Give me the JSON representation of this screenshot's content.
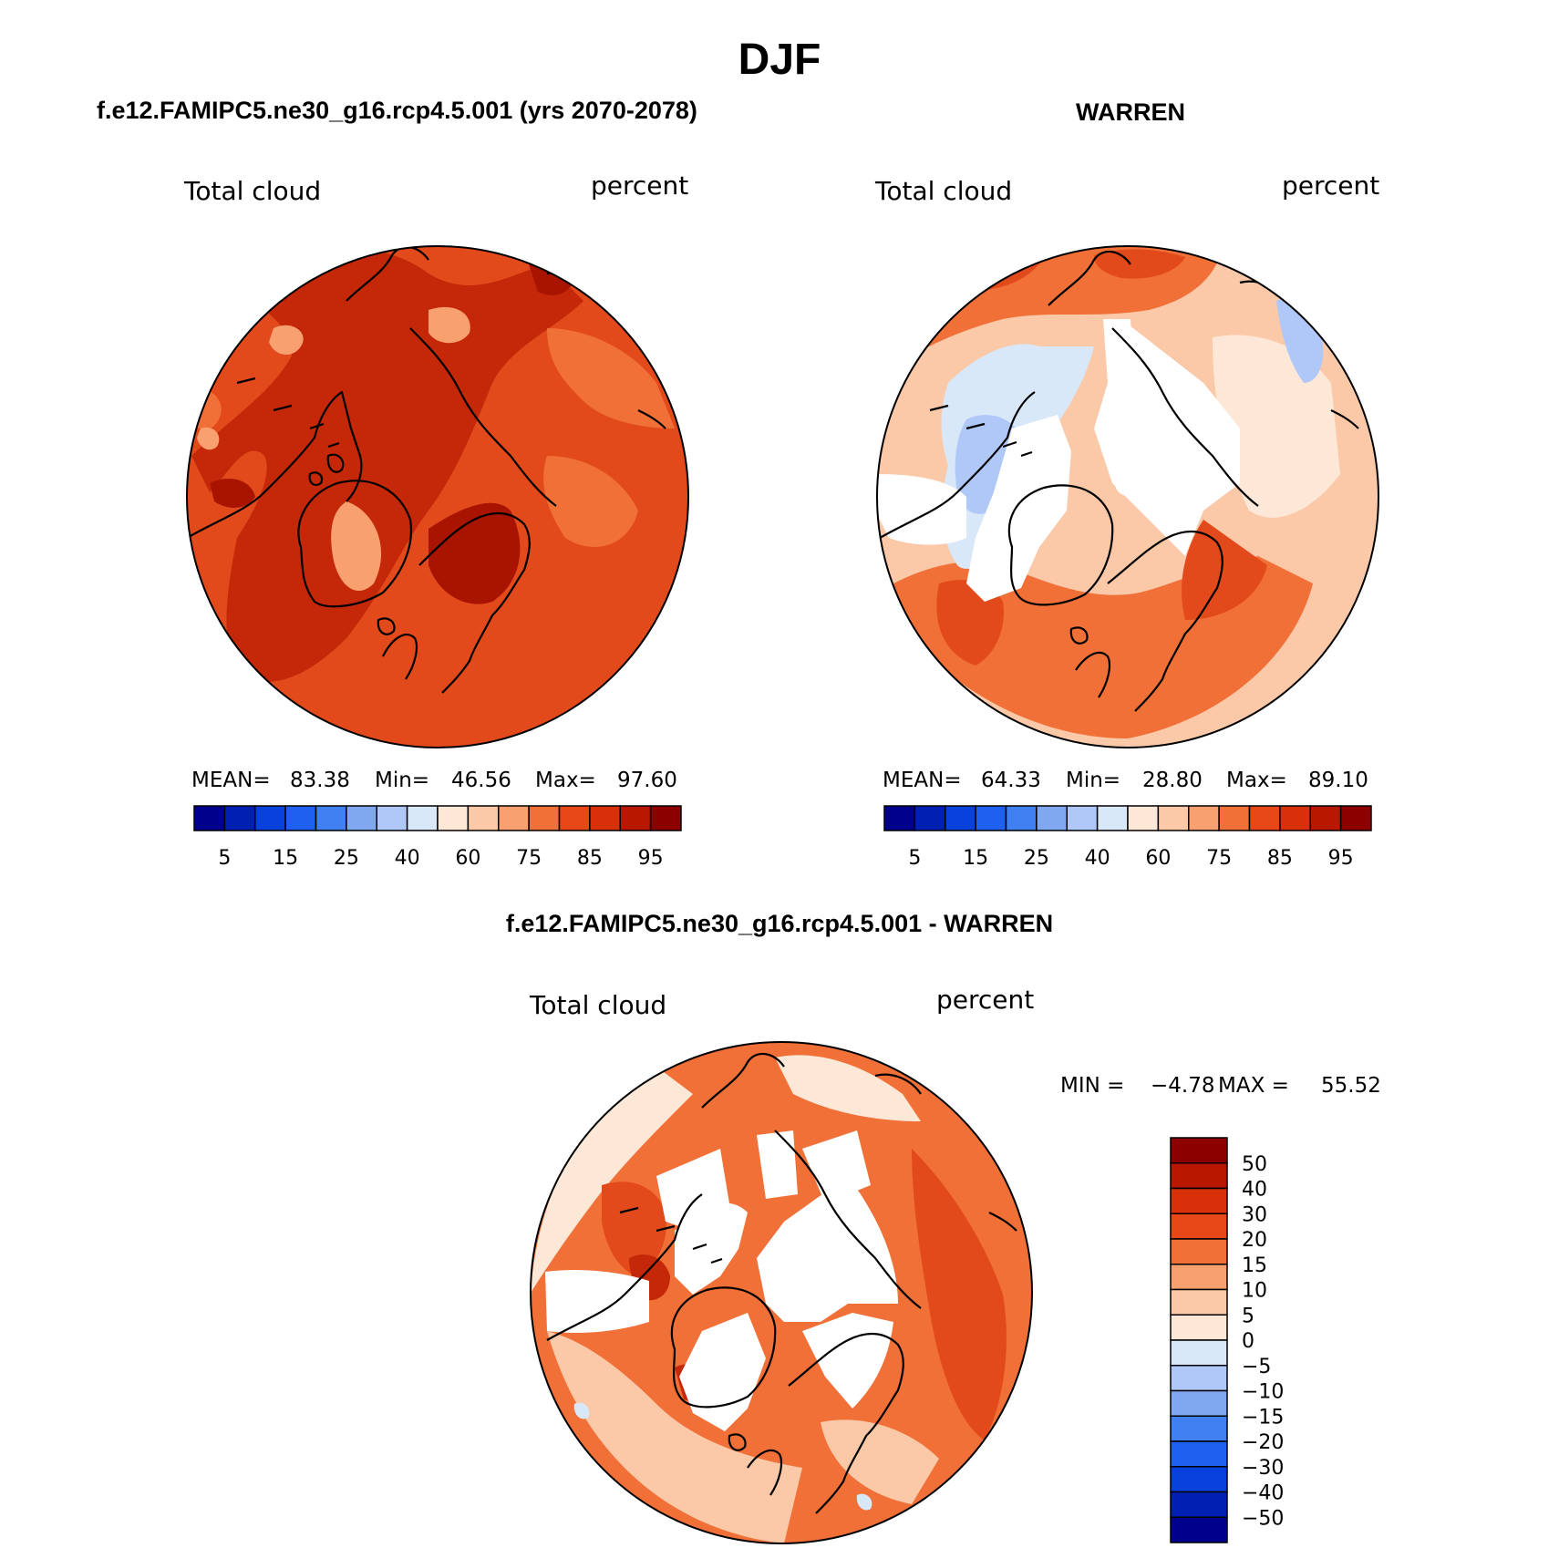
{
  "title": "DJF",
  "panels": [
    {
      "id": "model",
      "header": "f.e12.FAMIPC5.ne30_g16.rcp4.5.001 (yrs 2070-2078)",
      "variable": "Total cloud",
      "units": "percent",
      "stats": {
        "mean_label": "MEAN=",
        "mean": "83.38",
        "min_label": "Min=",
        "min": "46.56",
        "max_label": "Max=",
        "max": "97.60"
      }
    },
    {
      "id": "obs",
      "header": "WARREN",
      "variable": "Total cloud",
      "units": "percent",
      "stats": {
        "mean_label": "MEAN=",
        "mean": "64.33",
        "min_label": "Min=",
        "min": "28.80",
        "max_label": "Max=",
        "max": "89.10"
      }
    },
    {
      "id": "diff",
      "header": "f.e12.FAMIPC5.ne30_g16.rcp4.5.001 - WARREN",
      "variable": "Total cloud",
      "units": "percent",
      "stats": {
        "min_label": "MIN =",
        "min": "−4.78",
        "max_label": "MAX =",
        "max": "55.52"
      }
    }
  ],
  "horizontal_colorbar": {
    "colors": [
      "#00008c",
      "#0020b4",
      "#0841dc",
      "#2060f0",
      "#4080f0",
      "#80a8f0",
      "#b0c8f8",
      "#d8e8f8",
      "#fde8d8",
      "#fbc8a8",
      "#f8a070",
      "#f07038",
      "#e84818",
      "#d83008",
      "#b81800",
      "#8c0000"
    ],
    "tick_labels": [
      "5",
      "15",
      "25",
      "40",
      "60",
      "75",
      "85",
      "95"
    ]
  },
  "vertical_colorbar": {
    "colors_top_to_bottom": [
      "#8c0000",
      "#b81800",
      "#d83008",
      "#e84818",
      "#f07038",
      "#f8a070",
      "#fbc8a8",
      "#fde8d8",
      "#d8e8f8",
      "#b0c8f8",
      "#80a8f0",
      "#4080f0",
      "#2060f0",
      "#0841dc",
      "#0020b4",
      "#00008c"
    ],
    "tick_labels": [
      "50",
      "40",
      "30",
      "20",
      "15",
      "10",
      "5",
      "0",
      "−5",
      "−10",
      "−15",
      "−20",
      "−30",
      "−40",
      "−50"
    ]
  },
  "maps": {
    "projection": "North polar stereographic",
    "model_colors": {
      "base": "#e24a1c",
      "dark": "#c42808",
      "darker": "#a81400",
      "light": "#f07038",
      "pale": "#f8a070"
    },
    "obs_colors": {
      "base": "#fbc8a8",
      "orange": "#f07038",
      "red": "#e24a1c",
      "blue": "#b0c8f8",
      "lightblue": "#d8e8f8",
      "pale": "#fde8d8"
    },
    "diff_colors": {
      "base": "#f07038",
      "red": "#e24a1c",
      "pale": "#fbc8a8",
      "paler": "#fde8d8",
      "dark": "#c42808",
      "blue": "#d8e8f8"
    }
  }
}
